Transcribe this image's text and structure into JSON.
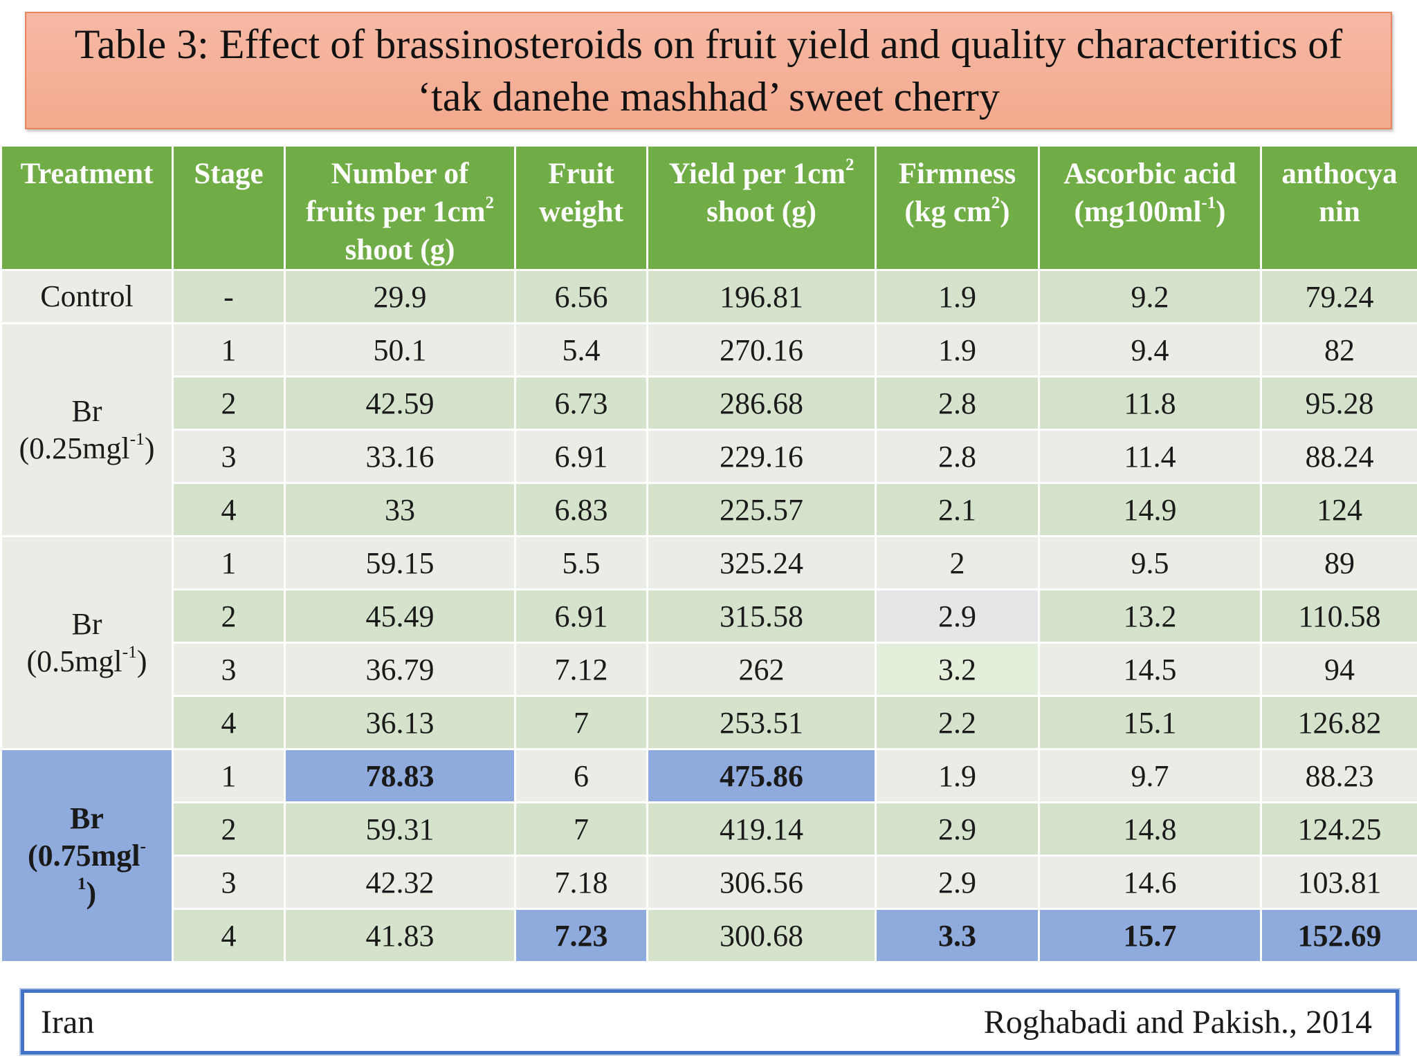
{
  "title": {
    "line1": "Table 3: Effect of brassinosteroids on fruit yield and quality characteritics of",
    "line2": "‘tak danehe mashhad’ sweet cherry"
  },
  "headers": {
    "treatment": "Treatment",
    "stage": "Stage",
    "num_fruits_a": "Number of",
    "num_fruits_b": "fruits per 1cm",
    "num_fruits_sup": "2",
    "num_fruits_c": "shoot (g)",
    "fruit_weight_a": "Fruit",
    "fruit_weight_b": "weight",
    "yield_a": "Yield per 1cm",
    "yield_sup": "2",
    "yield_b": "shoot (g)",
    "firmness_a": "Firmness",
    "firmness_b": "(kg cm",
    "firmness_sup": "2",
    "firmness_c": ")",
    "ascorbic_a": "Ascorbic acid",
    "ascorbic_b": "(mg100ml",
    "ascorbic_sup": "-1",
    "ascorbic_c": ")",
    "anthocyanin_a": "anthocya",
    "anthocyanin_b": "nin"
  },
  "treatments": {
    "control": "Control",
    "br025_a": "Br",
    "br025_b": "(0.25mgl",
    "br025_sup": "-1",
    "br025_c": ")",
    "br05_a": "Br",
    "br05_b": "(0.5mgl",
    "br05_sup": "-1",
    "br05_c": ")",
    "br075_a": "Br",
    "br075_b": "(0.75mgl",
    "br075_sup1": "-",
    "br075_sup2": "1",
    "br075_c": ")"
  },
  "rows": [
    {
      "stage": "-",
      "fruits": "29.9",
      "weight": "6.56",
      "yield": "196.81",
      "firmness": "1.9",
      "ascorbic": "9.2",
      "anthocyanin": "79.24"
    },
    {
      "stage": "1",
      "fruits": "50.1",
      "weight": "5.4",
      "yield": "270.16",
      "firmness": "1.9",
      "ascorbic": "9.4",
      "anthocyanin": "82"
    },
    {
      "stage": "2",
      "fruits": "42.59",
      "weight": "6.73",
      "yield": "286.68",
      "firmness": "2.8",
      "ascorbic": "11.8",
      "anthocyanin": "95.28"
    },
    {
      "stage": "3",
      "fruits": "33.16",
      "weight": "6.91",
      "yield": "229.16",
      "firmness": "2.8",
      "ascorbic": "11.4",
      "anthocyanin": "88.24"
    },
    {
      "stage": "4",
      "fruits": "33",
      "weight": "6.83",
      "yield": "225.57",
      "firmness": "2.1",
      "ascorbic": "14.9",
      "anthocyanin": "124"
    },
    {
      "stage": "1",
      "fruits": "59.15",
      "weight": "5.5",
      "yield": "325.24",
      "firmness": "2",
      "ascorbic": "9.5",
      "anthocyanin": "89"
    },
    {
      "stage": "2",
      "fruits": "45.49",
      "weight": "6.91",
      "yield": "315.58",
      "firmness": "2.9",
      "ascorbic": "13.2",
      "anthocyanin": "110.58"
    },
    {
      "stage": "3",
      "fruits": "36.79",
      "weight": "7.12",
      "yield": "262",
      "firmness": "3.2",
      "ascorbic": "14.5",
      "anthocyanin": "94"
    },
    {
      "stage": "4",
      "fruits": "36.13",
      "weight": "7",
      "yield": "253.51",
      "firmness": "2.2",
      "ascorbic": "15.1",
      "anthocyanin": "126.82"
    },
    {
      "stage": "1",
      "fruits": "78.83",
      "weight": "6",
      "yield": "475.86",
      "firmness": "1.9",
      "ascorbic": "9.7",
      "anthocyanin": "88.23"
    },
    {
      "stage": "2",
      "fruits": "59.31",
      "weight": "7",
      "yield": "419.14",
      "firmness": "2.9",
      "ascorbic": "14.8",
      "anthocyanin": "124.25"
    },
    {
      "stage": "3",
      "fruits": "42.32",
      "weight": "7.18",
      "yield": "306.56",
      "firmness": "2.9",
      "ascorbic": "14.6",
      "anthocyanin": "103.81"
    },
    {
      "stage": "4",
      "fruits": "41.83",
      "weight": "7.23",
      "yield": "300.68",
      "firmness": "3.3",
      "ascorbic": "15.7",
      "anthocyanin": "152.69"
    }
  ],
  "colors": {
    "header_green": "#70ad47",
    "row_light": "#e9ede6",
    "row_green": "#d5e3cd",
    "highlight_blue": "#8faadc",
    "title_salmon": "#f4b09a",
    "footer_border": "#4472c4"
  },
  "footer": {
    "country": "Iran",
    "citation": "Roghabadi and Pakish., 2014"
  }
}
